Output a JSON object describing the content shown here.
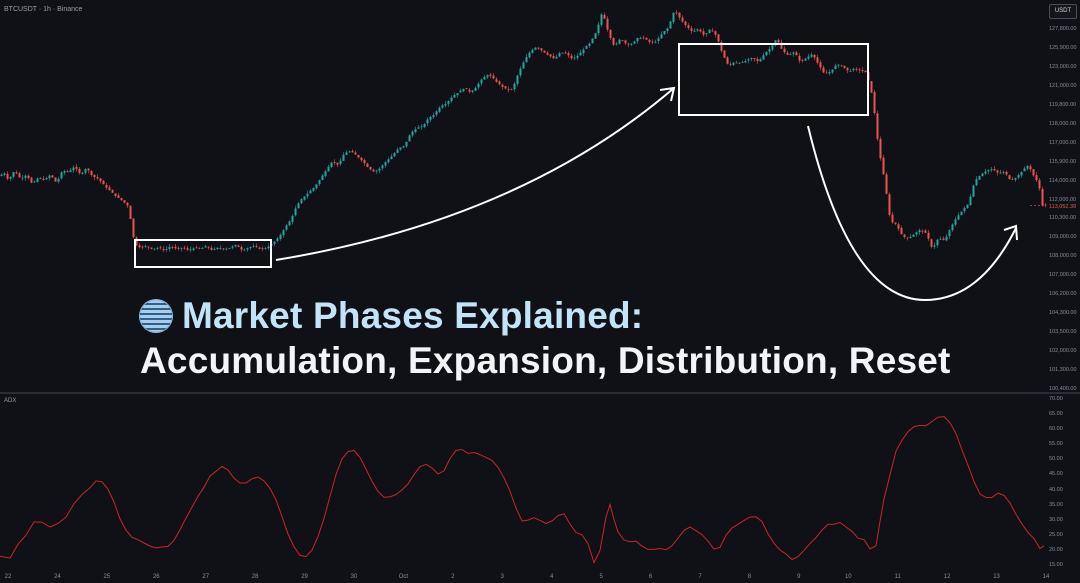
{
  "chart": {
    "symbol": "BTCUSDT · 1h · Binance",
    "currency": "USDT",
    "current_price": "113,052.39",
    "indicator_name": "ADX"
  },
  "overlay": {
    "title_accent": "Market Phases Explained:",
    "subtitle": "Accumulation, Expansion, Distribution, Reset",
    "icon": "striped-circle-icon"
  },
  "colors": {
    "background": "#0f1117",
    "up_candle": "#26a69a",
    "down_candle": "#ef5350",
    "indicator_line": "#c62828",
    "annotation": "#ffffff",
    "accent_text": "#c3e3f7"
  },
  "price_axis": [
    "127,800.00",
    "125,900.00",
    "123,000.00",
    "121,000.00",
    "119,800.00",
    "118,000.00",
    "117,000.00",
    "115,900.00",
    "114,000.00",
    "112,000.00",
    "110,300.00",
    "109,000.00",
    "108,000.00",
    "107,000.00",
    "106,200.00",
    "104,300.00",
    "103,500.00",
    "102,000.00",
    "101,300.00",
    "100,400.00"
  ],
  "indicator_axis": [
    "70.00",
    "65.00",
    "60.00",
    "55.00",
    "50.00",
    "45.00",
    "40.00",
    "35.00",
    "30.00",
    "25.00",
    "20.00",
    "15.00"
  ],
  "time_axis": [
    "22",
    "24",
    "25",
    "26",
    "27",
    "28",
    "29",
    "30",
    "Oct",
    "2",
    "3",
    "4",
    "5",
    "6",
    "7",
    "8",
    "9",
    "10",
    "11",
    "12",
    "13",
    "14"
  ],
  "annotations": {
    "boxes": [
      "accumulation-box",
      "distribution-box"
    ],
    "arrows": [
      "expansion-arrow",
      "reset-arrow"
    ]
  },
  "chart_data": {
    "type": "candlestick",
    "title": "",
    "xlabel": "",
    "ylabel": "",
    "ylim": [
      99500,
      128000
    ],
    "price_path": [
      [
        0,
        115200
      ],
      [
        6,
        115400
      ],
      [
        10,
        114900
      ],
      [
        16,
        115600
      ],
      [
        22,
        115000
      ],
      [
        28,
        115300
      ],
      [
        34,
        114600
      ],
      [
        40,
        115100
      ],
      [
        46,
        114900
      ],
      [
        52,
        115300
      ],
      [
        58,
        114700
      ],
      [
        64,
        115600
      ],
      [
        70,
        115500
      ],
      [
        76,
        115900
      ],
      [
        82,
        115300
      ],
      [
        88,
        115800
      ],
      [
        94,
        115200
      ],
      [
        100,
        115000
      ],
      [
        106,
        114500
      ],
      [
        112,
        114100
      ],
      [
        118,
        113700
      ],
      [
        124,
        113400
      ],
      [
        130,
        113000
      ],
      [
        136,
        110300
      ],
      [
        142,
        110000
      ],
      [
        148,
        110100
      ],
      [
        154,
        109900
      ],
      [
        160,
        110000
      ],
      [
        166,
        109800
      ],
      [
        172,
        110100
      ],
      [
        178,
        109900
      ],
      [
        184,
        110000
      ],
      [
        190,
        109800
      ],
      [
        196,
        110000
      ],
      [
        202,
        109900
      ],
      [
        208,
        110100
      ],
      [
        214,
        109800
      ],
      [
        220,
        110000
      ],
      [
        226,
        109900
      ],
      [
        232,
        110000
      ],
      [
        238,
        110200
      ],
      [
        244,
        109800
      ],
      [
        250,
        110000
      ],
      [
        256,
        110100
      ],
      [
        262,
        109900
      ],
      [
        268,
        110000
      ],
      [
        274,
        110300
      ],
      [
        280,
        110700
      ],
      [
        286,
        111400
      ],
      [
        292,
        112000
      ],
      [
        298,
        113000
      ],
      [
        304,
        113600
      ],
      [
        310,
        114000
      ],
      [
        316,
        114400
      ],
      [
        322,
        115000
      ],
      [
        328,
        115700
      ],
      [
        334,
        116300
      ],
      [
        340,
        116000
      ],
      [
        346,
        116900
      ],
      [
        352,
        117000
      ],
      [
        358,
        116700
      ],
      [
        364,
        116300
      ],
      [
        370,
        115800
      ],
      [
        376,
        115500
      ],
      [
        382,
        115800
      ],
      [
        388,
        116300
      ],
      [
        394,
        116700
      ],
      [
        400,
        117200
      ],
      [
        406,
        117400
      ],
      [
        412,
        118300
      ],
      [
        418,
        118700
      ],
      [
        424,
        118800
      ],
      [
        430,
        119400
      ],
      [
        436,
        119700
      ],
      [
        442,
        120300
      ],
      [
        448,
        120500
      ],
      [
        454,
        121000
      ],
      [
        460,
        121300
      ],
      [
        466,
        121600
      ],
      [
        472,
        121300
      ],
      [
        478,
        121700
      ],
      [
        484,
        122300
      ],
      [
        490,
        122600
      ],
      [
        496,
        122200
      ],
      [
        502,
        121800
      ],
      [
        508,
        121500
      ],
      [
        514,
        121500
      ],
      [
        520,
        122700
      ],
      [
        526,
        123600
      ],
      [
        532,
        124300
      ],
      [
        538,
        124600
      ],
      [
        544,
        124300
      ],
      [
        550,
        124000
      ],
      [
        556,
        123700
      ],
      [
        562,
        124200
      ],
      [
        568,
        124100
      ],
      [
        574,
        123700
      ],
      [
        580,
        124000
      ],
      [
        586,
        124500
      ],
      [
        592,
        124900
      ],
      [
        598,
        125700
      ],
      [
        604,
        127200
      ],
      [
        610,
        125600
      ],
      [
        616,
        124600
      ],
      [
        622,
        125200
      ],
      [
        628,
        124800
      ],
      [
        634,
        124800
      ],
      [
        640,
        125300
      ],
      [
        646,
        125200
      ],
      [
        652,
        124900
      ],
      [
        658,
        125000
      ],
      [
        664,
        125600
      ],
      [
        670,
        126000
      ],
      [
        676,
        127300
      ],
      [
        682,
        126600
      ],
      [
        688,
        126100
      ],
      [
        694,
        125700
      ],
      [
        700,
        125900
      ],
      [
        706,
        125400
      ],
      [
        712,
        125900
      ],
      [
        718,
        125400
      ],
      [
        724,
        124100
      ],
      [
        730,
        123200
      ],
      [
        736,
        123500
      ],
      [
        742,
        123400
      ],
      [
        748,
        123600
      ],
      [
        754,
        123800
      ],
      [
        760,
        123500
      ],
      [
        766,
        124100
      ],
      [
        772,
        124500
      ],
      [
        778,
        125200
      ],
      [
        784,
        124300
      ],
      [
        790,
        124000
      ],
      [
        796,
        124200
      ],
      [
        802,
        123500
      ],
      [
        808,
        123800
      ],
      [
        814,
        124100
      ],
      [
        820,
        123300
      ],
      [
        826,
        122600
      ],
      [
        832,
        122800
      ],
      [
        838,
        123300
      ],
      [
        844,
        123200
      ],
      [
        850,
        122800
      ],
      [
        856,
        123000
      ],
      [
        862,
        122900
      ],
      [
        868,
        122700
      ],
      [
        874,
        121000
      ],
      [
        880,
        117300
      ],
      [
        886,
        114900
      ],
      [
        892,
        111900
      ],
      [
        898,
        111700
      ],
      [
        904,
        110800
      ],
      [
        910,
        110700
      ],
      [
        916,
        111000
      ],
      [
        922,
        111300
      ],
      [
        928,
        111000
      ],
      [
        934,
        109900
      ],
      [
        940,
        110700
      ],
      [
        946,
        110500
      ],
      [
        952,
        111400
      ],
      [
        958,
        112200
      ],
      [
        964,
        112700
      ],
      [
        970,
        113200
      ],
      [
        976,
        114800
      ],
      [
        982,
        115300
      ],
      [
        988,
        115600
      ],
      [
        994,
        115700
      ],
      [
        1000,
        115400
      ],
      [
        1006,
        115500
      ],
      [
        1012,
        114900
      ],
      [
        1018,
        115100
      ],
      [
        1024,
        115600
      ],
      [
        1030,
        116000
      ],
      [
        1036,
        115100
      ],
      [
        1040,
        114700
      ],
      [
        1044,
        113100
      ]
    ],
    "indicator_path": [
      [
        0,
        18.2
      ],
      [
        10,
        17.6
      ],
      [
        18,
        22.2
      ],
      [
        26,
        25.2
      ],
      [
        34,
        29.6
      ],
      [
        42,
        29.5
      ],
      [
        50,
        27.9
      ],
      [
        58,
        29.1
      ],
      [
        66,
        31.2
      ],
      [
        74,
        35.6
      ],
      [
        82,
        38.7
      ],
      [
        90,
        40.9
      ],
      [
        96,
        43.2
      ],
      [
        102,
        42.9
      ],
      [
        108,
        40.4
      ],
      [
        114,
        36.2
      ],
      [
        120,
        30.6
      ],
      [
        126,
        26.9
      ],
      [
        132,
        24.5
      ],
      [
        138,
        23.7
      ],
      [
        144,
        22.6
      ],
      [
        150,
        21.6
      ],
      [
        156,
        21.0
      ],
      [
        160,
        21.2
      ],
      [
        168,
        21.5
      ],
      [
        174,
        23.5
      ],
      [
        180,
        27.0
      ],
      [
        186,
        30.9
      ],
      [
        192,
        34.5
      ],
      [
        198,
        38.1
      ],
      [
        204,
        41.1
      ],
      [
        210,
        44.8
      ],
      [
        216,
        46.4
      ],
      [
        222,
        48.0
      ],
      [
        228,
        46.8
      ],
      [
        234,
        44.1
      ],
      [
        240,
        42.5
      ],
      [
        246,
        42.5
      ],
      [
        252,
        43.9
      ],
      [
        258,
        44.5
      ],
      [
        264,
        43.2
      ],
      [
        270,
        40.7
      ],
      [
        276,
        36.9
      ],
      [
        282,
        31.4
      ],
      [
        288,
        25.6
      ],
      [
        294,
        21.4
      ],
      [
        300,
        18.5
      ],
      [
        306,
        18.1
      ],
      [
        312,
        20.3
      ],
      [
        318,
        24.8
      ],
      [
        324,
        30.7
      ],
      [
        330,
        38.1
      ],
      [
        336,
        45.3
      ],
      [
        342,
        50.5
      ],
      [
        348,
        52.9
      ],
      [
        354,
        53.3
      ],
      [
        360,
        51.0
      ],
      [
        366,
        47.1
      ],
      [
        372,
        43.1
      ],
      [
        378,
        39.7
      ],
      [
        384,
        37.8
      ],
      [
        390,
        37.9
      ],
      [
        396,
        38.7
      ],
      [
        402,
        40.2
      ],
      [
        408,
        42.2
      ],
      [
        414,
        45.3
      ],
      [
        420,
        47.9
      ],
      [
        426,
        48.7
      ],
      [
        432,
        47.5
      ],
      [
        438,
        45.5
      ],
      [
        444,
        46.5
      ],
      [
        450,
        50.6
      ],
      [
        456,
        53.3
      ],
      [
        462,
        53.6
      ],
      [
        468,
        52.3
      ],
      [
        474,
        52.6
      ],
      [
        480,
        51.9
      ],
      [
        486,
        51.0
      ],
      [
        492,
        50.0
      ],
      [
        498,
        47.7
      ],
      [
        504,
        44.2
      ],
      [
        510,
        39.8
      ],
      [
        516,
        34.2
      ],
      [
        522,
        29.9
      ],
      [
        528,
        30.2
      ],
      [
        534,
        31.0
      ],
      [
        540,
        30.1
      ],
      [
        546,
        29.1
      ],
      [
        552,
        29.9
      ],
      [
        558,
        31.7
      ],
      [
        564,
        32.3
      ],
      [
        570,
        28.9
      ],
      [
        576,
        26.1
      ],
      [
        582,
        25.3
      ],
      [
        588,
        22.4
      ],
      [
        594,
        16.1
      ],
      [
        600,
        20.2
      ],
      [
        606,
        31.2
      ],
      [
        610,
        35.4
      ],
      [
        614,
        30.4
      ],
      [
        618,
        26.3
      ],
      [
        624,
        23.6
      ],
      [
        630,
        23.0
      ],
      [
        636,
        23.2
      ],
      [
        642,
        21.6
      ],
      [
        648,
        20.5
      ],
      [
        654,
        20.5
      ],
      [
        660,
        20.8
      ],
      [
        666,
        20.4
      ],
      [
        672,
        21.7
      ],
      [
        678,
        24.2
      ],
      [
        684,
        26.8
      ],
      [
        690,
        27.9
      ],
      [
        696,
        26.7
      ],
      [
        702,
        25.4
      ],
      [
        708,
        23.2
      ],
      [
        714,
        20.6
      ],
      [
        720,
        21.2
      ],
      [
        726,
        25.2
      ],
      [
        732,
        27.6
      ],
      [
        738,
        28.8
      ],
      [
        744,
        30.1
      ],
      [
        750,
        31.2
      ],
      [
        756,
        31.3
      ],
      [
        762,
        29.7
      ],
      [
        768,
        25.7
      ],
      [
        774,
        22.5
      ],
      [
        780,
        20.3
      ],
      [
        786,
        19.0
      ],
      [
        792,
        17.1
      ],
      [
        798,
        18.1
      ],
      [
        804,
        20.2
      ],
      [
        810,
        22.4
      ],
      [
        816,
        24.4
      ],
      [
        822,
        26.9
      ],
      [
        828,
        28.8
      ],
      [
        834,
        28.8
      ],
      [
        840,
        29.4
      ],
      [
        846,
        27.9
      ],
      [
        852,
        26.5
      ],
      [
        858,
        24.2
      ],
      [
        864,
        23.7
      ],
      [
        870,
        20.7
      ],
      [
        876,
        21.7
      ],
      [
        880,
        29.8
      ],
      [
        884,
        37.2
      ],
      [
        890,
        45.2
      ],
      [
        896,
        53.1
      ],
      [
        902,
        56.7
      ],
      [
        908,
        59.5
      ],
      [
        914,
        61.2
      ],
      [
        920,
        61.6
      ],
      [
        926,
        61.5
      ],
      [
        932,
        62.9
      ],
      [
        938,
        64.3
      ],
      [
        944,
        64.5
      ],
      [
        950,
        62.5
      ],
      [
        956,
        58.9
      ],
      [
        962,
        53.4
      ],
      [
        968,
        48.4
      ],
      [
        974,
        43.0
      ],
      [
        980,
        38.9
      ],
      [
        986,
        37.7
      ],
      [
        992,
        37.7
      ],
      [
        998,
        39.2
      ],
      [
        1004,
        38.4
      ],
      [
        1010,
        35.9
      ],
      [
        1016,
        32.1
      ],
      [
        1022,
        28.9
      ],
      [
        1028,
        26.1
      ],
      [
        1034,
        24.1
      ],
      [
        1040,
        20.8
      ],
      [
        1044,
        21.7
      ]
    ]
  }
}
